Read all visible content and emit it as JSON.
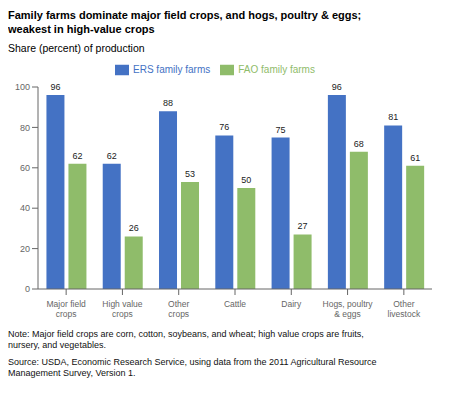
{
  "chart_data": {
    "type": "bar",
    "title": "Family farms dominate major field crops, and hogs, poultry & eggs;\nweakest in high-value crops",
    "y_label": "Share (percent) of production",
    "categories": [
      "Major field\ncrops",
      "High value\ncrops",
      "Other\ncrops",
      "Cattle",
      "Dairy",
      "Hogs, poultry\n& eggs",
      "Other\nlivestock"
    ],
    "series": [
      {
        "name": "ERS family farms",
        "color": "#4472C4",
        "values": [
          96,
          62,
          88,
          76,
          75,
          96,
          81
        ]
      },
      {
        "name": "FAO family farms",
        "color": "#8FBC6A",
        "values": [
          62,
          26,
          53,
          50,
          27,
          68,
          61
        ]
      }
    ],
    "ylim": [
      0,
      100
    ],
    "yticks": [
      0,
      20,
      40,
      60,
      80,
      100
    ],
    "grid": false,
    "legend": "top",
    "data_labels": true,
    "annotations": [
      "Note: Major field crops are corn, cotton, soybeans, and wheat; high value crops are fruits,\nnursery, and vegetables.",
      "Source: USDA, Economic Research Service, using data from the 2011 Agricultural Resource\nManagement Survey, Version 1."
    ]
  }
}
